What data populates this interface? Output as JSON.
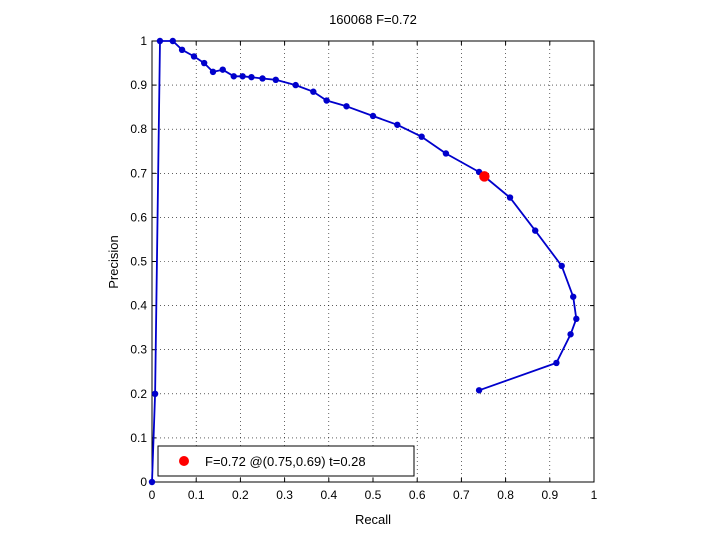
{
  "chart_data": {
    "type": "line",
    "title": "160068 F=0.72",
    "xlabel": "Recall",
    "ylabel": "Precision",
    "xlim": [
      0,
      1
    ],
    "ylim": [
      0,
      1
    ],
    "xticks": [
      0,
      0.1,
      0.2,
      0.3,
      0.4,
      0.5,
      0.6,
      0.7,
      0.8,
      0.9,
      1
    ],
    "yticks": [
      0,
      0.1,
      0.2,
      0.3,
      0.4,
      0.5,
      0.6,
      0.7,
      0.8,
      0.9,
      1
    ],
    "xtick_labels": [
      "0",
      "0.1",
      "0.2",
      "0.3",
      "0.4",
      "0.5",
      "0.6",
      "0.7",
      "0.8",
      "0.9",
      "1"
    ],
    "ytick_labels": [
      "0",
      "0.1",
      "0.2",
      "0.3",
      "0.4",
      "0.5",
      "0.6",
      "0.7",
      "0.8",
      "0.9",
      "1"
    ],
    "grid": true,
    "legend_position": "bottom-left",
    "series": [
      {
        "color": "#0000cc",
        "x": [
          0.0,
          0.007,
          0.018,
          0.047,
          0.068,
          0.095,
          0.118,
          0.138,
          0.16,
          0.185,
          0.205,
          0.225,
          0.25,
          0.28,
          0.325,
          0.365,
          0.395,
          0.44,
          0.5,
          0.555,
          0.61,
          0.665,
          0.74,
          0.81,
          0.867,
          0.927,
          0.953,
          0.96,
          0.947,
          0.915,
          0.74
        ],
        "y": [
          0.0,
          0.2,
          1.0,
          1.0,
          0.98,
          0.965,
          0.95,
          0.93,
          0.935,
          0.92,
          0.92,
          0.918,
          0.915,
          0.912,
          0.9,
          0.885,
          0.865,
          0.852,
          0.83,
          0.81,
          0.783,
          0.745,
          0.703,
          0.645,
          0.57,
          0.49,
          0.42,
          0.37,
          0.335,
          0.27,
          0.208
        ]
      }
    ],
    "marker_point": {
      "x": 0.752,
      "y": 0.693,
      "color": "#ff0000"
    },
    "legend": {
      "label": "F=0.72 @(0.75,0.69) t=0.28",
      "color": "#ff0000"
    }
  }
}
